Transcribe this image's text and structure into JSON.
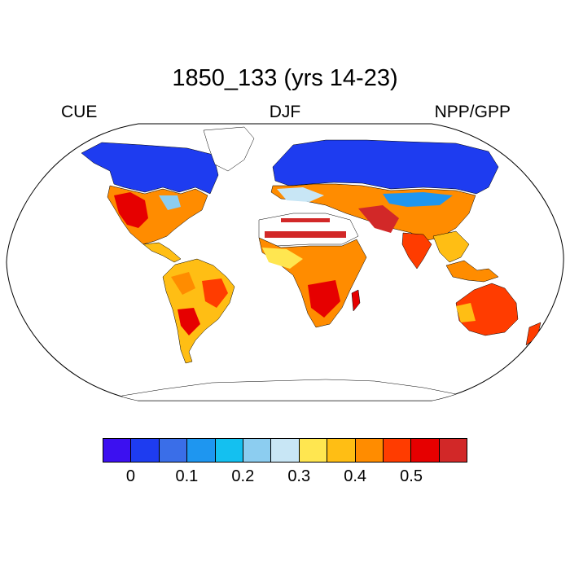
{
  "title": "1850_133 (yrs 14-23)",
  "left_label": "CUE",
  "center_label": "DJF",
  "right_label": "NPP/GPP",
  "colorbar": {
    "colors": [
      "#3c10f0",
      "#1e3cf0",
      "#3a6ee8",
      "#1e96f0",
      "#14c0f0",
      "#8ccdf0",
      "#c8e6f5",
      "#ffe650",
      "#ffbe14",
      "#ff8c00",
      "#ff3c00",
      "#e60000",
      "#d22828"
    ],
    "tick_labels": [
      "0",
      "0.1",
      "0.2",
      "0.3",
      "0.4",
      "0.5"
    ]
  }
}
